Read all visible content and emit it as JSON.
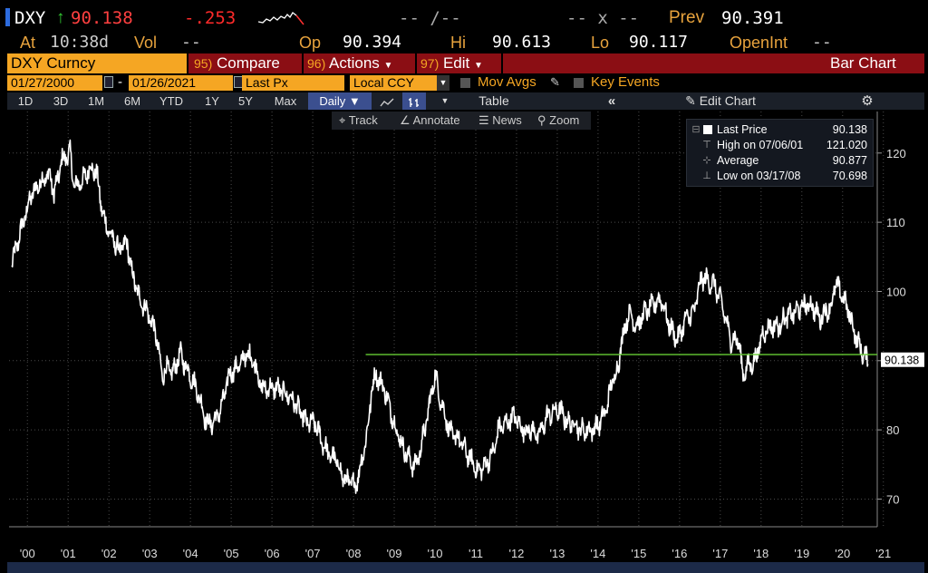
{
  "quote": {
    "ticker": "DXY",
    "arrow": "↑",
    "last": "90.138",
    "change": "-.253",
    "bid_ask": "-- /--",
    "size": "-- x --",
    "prev_label": "Prev",
    "prev": "90.391",
    "at_label": "At",
    "time": "10:38d",
    "vol_label": "Vol",
    "vol": "--",
    "open_label": "Op",
    "open": "90.394",
    "hi_label": "Hi",
    "hi": "90.613",
    "lo_label": "Lo",
    "lo": "90.117",
    "oi_label": "OpenInt",
    "oi": "--"
  },
  "menubar": {
    "security": "DXY Curncy",
    "compare_num": "95)",
    "compare": "Compare",
    "actions_num": "96)",
    "actions": "Actions",
    "edit_num": "97)",
    "edit": "Edit",
    "chart_type": "Bar Chart"
  },
  "range": {
    "start": "01/27/2000",
    "dash": "-",
    "end": "01/26/2021",
    "field": "Last Px",
    "currency": "Local CCY",
    "mov_avgs": "Mov Avgs",
    "key_events": "Key Events"
  },
  "toolbar": {
    "periods": [
      "1D",
      "3D",
      "1M",
      "6M",
      "YTD",
      "1Y",
      "5Y",
      "Max"
    ],
    "frequency": "Daily ▼",
    "table": "Table",
    "edit_chart": "Edit Chart"
  },
  "tools": {
    "track": "Track",
    "annotate": "Annotate",
    "news": "News",
    "zoom": "Zoom"
  },
  "legend": [
    {
      "name": "Last Price",
      "value": "90.138",
      "icon": "square-icon"
    },
    {
      "name": "High on 07/06/01",
      "value": "121.020",
      "icon": "high-marker-icon"
    },
    {
      "name": "Average",
      "value": "90.877",
      "icon": "average-line-icon"
    },
    {
      "name": "Low on 03/17/08",
      "value": "70.698",
      "icon": "low-marker-icon"
    }
  ],
  "colors": {
    "price_line": "#ffffff",
    "average_line": "#66cc33",
    "menu_bg": "#8b0e14",
    "accent": "#f5a623",
    "negative": "#ff2a2a"
  },
  "chart_data": {
    "type": "line",
    "series": [
      {
        "name": "Last Price"
      }
    ],
    "x": [
      2000.07,
      2000.3,
      2000.55,
      2000.8,
      2001.0,
      2001.1,
      2001.3,
      2001.5,
      2001.6,
      2001.8,
      2002.0,
      2002.15,
      2002.3,
      2002.5,
      2002.7,
      2002.9,
      2003.0,
      2003.2,
      2003.4,
      2003.6,
      2003.75,
      2003.9,
      2004.0,
      2004.2,
      2004.35,
      2004.6,
      2004.85,
      2005.0,
      2005.2,
      2005.4,
      2005.6,
      2005.85,
      2006.0,
      2006.2,
      2006.4,
      2006.6,
      2006.85,
      2007.0,
      2007.3,
      2007.5,
      2007.7,
      2007.9,
      2008.0,
      2008.2,
      2008.5,
      2008.6,
      2008.8,
      2008.9,
      2009.0,
      2009.2,
      2009.5,
      2009.7,
      2009.9,
      2010.0,
      2010.2,
      2010.45,
      2010.6,
      2010.8,
      2010.9,
      2011.0,
      2011.3,
      2011.5,
      2011.7,
      2011.9,
      2012.0,
      2012.2,
      2012.4,
      2012.6,
      2012.85,
      2013.0,
      2013.2,
      2013.5,
      2013.7,
      2013.9,
      2014.0,
      2014.3,
      2014.5,
      2014.65,
      2014.8,
      2014.95,
      2015.0,
      2015.2,
      2015.4,
      2015.6,
      2015.8,
      2016.0,
      2016.2,
      2016.4,
      2016.6,
      2016.8,
      2016.95,
      2017.0,
      2017.3,
      2017.5,
      2017.7,
      2017.9,
      2018.0,
      2018.1,
      2018.3,
      2018.5,
      2018.7,
      2018.9,
      2019.0,
      2019.3,
      2019.5,
      2019.7,
      2019.9,
      2020.0,
      2020.2,
      2020.25,
      2020.4,
      2020.6,
      2020.8,
      2020.95,
      2021.07
    ],
    "y": [
      104,
      109,
      114,
      116,
      117,
      114,
      119,
      120,
      115,
      116,
      118,
      117,
      111,
      108,
      106,
      107,
      103,
      99,
      97,
      94,
      88,
      89,
      88,
      91,
      89,
      86,
      81,
      81,
      83,
      88,
      89,
      91,
      90,
      86,
      86,
      86,
      85,
      84,
      81,
      81,
      78,
      76,
      76,
      73,
      72,
      74,
      80,
      86,
      88,
      86,
      80,
      77,
      75,
      75,
      80,
      88,
      84,
      80,
      79,
      79,
      76,
      74,
      75,
      77,
      80,
      81,
      82,
      80,
      80,
      79,
      82,
      83,
      81,
      81,
      80,
      80,
      81,
      83,
      87,
      89,
      92,
      97,
      95,
      97,
      98,
      99,
      95,
      93,
      96,
      97,
      101,
      102,
      101,
      98,
      93,
      93,
      88,
      89,
      90,
      94,
      95,
      95,
      96,
      97,
      98,
      98,
      96,
      97,
      98,
      101,
      100,
      97,
      93,
      91,
      90
    ],
    "average": 90.877,
    "last_label": "90.138",
    "x_ticks": [
      "'00",
      "'01",
      "'02",
      "'03",
      "'04",
      "'05",
      "'06",
      "'07",
      "'08",
      "'09",
      "'10",
      "'11",
      "'12",
      "'13",
      "'14",
      "'15",
      "'16",
      "'17",
      "'18",
      "'19",
      "'20",
      "'21"
    ],
    "y_ticks": [
      70,
      80,
      90,
      100,
      110,
      120
    ],
    "ylim": [
      66,
      126
    ],
    "xlim": [
      2000.0,
      2021.3
    ],
    "grid": true,
    "legend_position": "top-right"
  }
}
